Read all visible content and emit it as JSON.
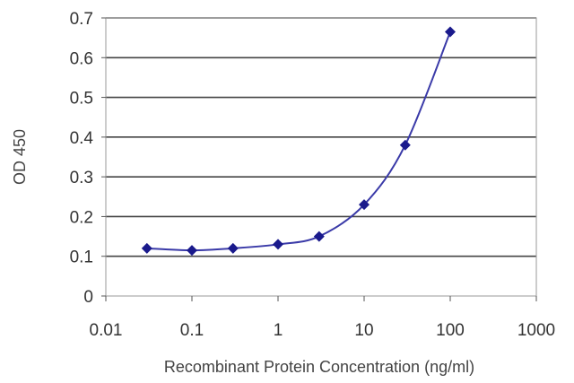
{
  "chart_data": {
    "type": "scatter",
    "title": "",
    "xlabel": "Recombinant Protein Concentration (ng/ml)",
    "ylabel": "OD 450",
    "x_scale": "log",
    "xlim": [
      0.01,
      1000
    ],
    "ylim": [
      0,
      0.7
    ],
    "x_ticks": [
      0.01,
      0.1,
      1,
      10,
      100,
      1000
    ],
    "x_tick_labels": [
      "0.01",
      "0.1",
      "1",
      "10",
      "100",
      "1000"
    ],
    "y_ticks": [
      0,
      0.1,
      0.2,
      0.3,
      0.4,
      0.5,
      0.6,
      0.7
    ],
    "y_tick_labels": [
      "0",
      "0.1",
      "0.2",
      "0.3",
      "0.4",
      "0.5",
      "0.6",
      "0.7"
    ],
    "grid": "horizontal",
    "legend": "none",
    "series": [
      {
        "x": [
          0.03,
          0.1,
          0.3,
          1,
          3,
          10,
          30,
          100
        ],
        "y": [
          0.12,
          0.115,
          0.12,
          0.13,
          0.15,
          0.23,
          0.38,
          0.665
        ],
        "color": "#1a1a8c",
        "marker": "diamond",
        "fit_curve": true
      }
    ]
  }
}
